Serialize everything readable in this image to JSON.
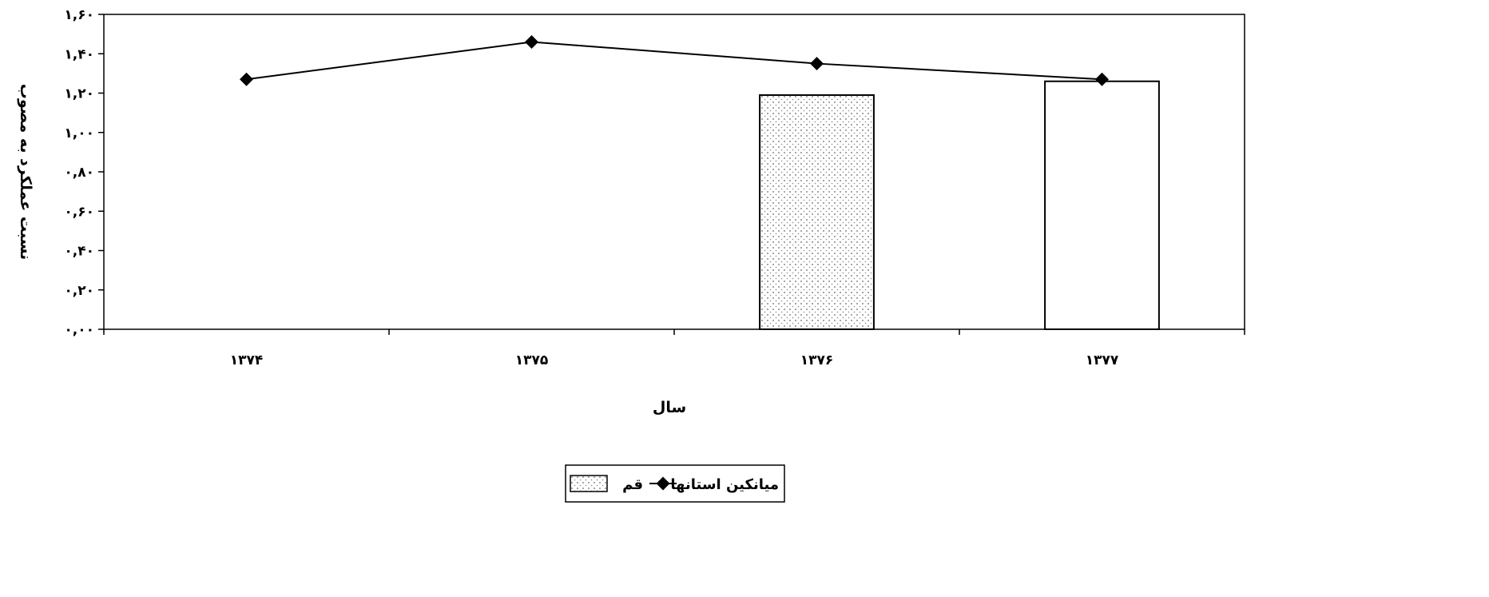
{
  "chart_data": {
    "type": "bar",
    "categories": [
      "۱۳۷۴",
      "۱۳۷۵",
      "۱۳۷۶",
      "۱۳۷۷"
    ],
    "series": [
      {
        "name": "قم",
        "kind": "bar",
        "values": [
          null,
          null,
          1.19,
          1.26
        ],
        "fills": [
          "dotted",
          "dotted",
          "dotted",
          "white"
        ]
      },
      {
        "name": "میانکین استانها",
        "kind": "line",
        "values": [
          1.27,
          1.46,
          1.35,
          1.27
        ]
      }
    ],
    "ylim": [
      0,
      1.6
    ],
    "yticks": [
      0,
      0.2,
      0.4,
      0.6,
      0.8,
      1.0,
      1.2,
      1.4,
      1.6
    ],
    "ytick_labels": [
      "۰,۰۰",
      "۰,۲۰",
      "۰,۴۰",
      "۰,۶۰",
      "۰,۸۰",
      "۱,۰۰",
      "۱,۲۰",
      "۱,۴۰",
      "۱,۶۰"
    ],
    "xlabel": "سال",
    "ylabel": "نسبت عملکرد به مصوب",
    "grid": false,
    "legend_position": "bottom-center",
    "colors": {
      "line": "#000000",
      "bar_border": "#000000",
      "bar_dots": "#555555",
      "background": "#ffffff"
    }
  }
}
